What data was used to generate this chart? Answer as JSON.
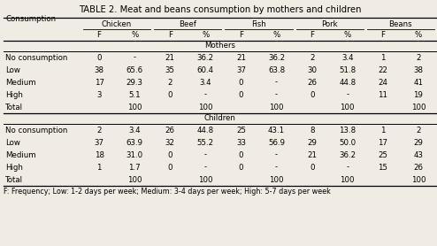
{
  "title": "TABLE 2. Meat and beans consumption by mothers and children",
  "footnote": "F: Frequency; Low: 1-2 days per week; Medium: 3-4 days per week; High: 5-7 days per week",
  "col_headers": [
    "Consumption",
    "F",
    "%",
    "F",
    "%",
    "F",
    "%",
    "F",
    "%",
    "F",
    "%"
  ],
  "food_headers": [
    "Chicken",
    "Beef",
    "Fish",
    "Pork",
    "Beans"
  ],
  "mothers_label": "Mothers",
  "children_label": "Children",
  "mothers_rows": [
    [
      "No consumption",
      "0",
      "-",
      "21",
      "36.2",
      "21",
      "36.2",
      "2",
      "3.4",
      "1",
      "2"
    ],
    [
      "Low",
      "38",
      "65.6",
      "35",
      "60.4",
      "37",
      "63.8",
      "30",
      "51.8",
      "22",
      "38"
    ],
    [
      "Medium",
      "17",
      "29.3",
      "2",
      "3.4",
      "0",
      "-",
      "26",
      "44.8",
      "24",
      "41"
    ],
    [
      "High",
      "3",
      "5.1",
      "0",
      "-",
      "0",
      "-",
      "0",
      "-",
      "11",
      "19"
    ],
    [
      "Total",
      "",
      "100",
      "",
      "100",
      "",
      "100",
      "",
      "100",
      "",
      "100"
    ]
  ],
  "children_rows": [
    [
      "No consumption",
      "2",
      "3.4",
      "26",
      "44.8",
      "25",
      "43.1",
      "8",
      "13.8",
      "1",
      "2"
    ],
    [
      "Low",
      "37",
      "63.9",
      "32",
      "55.2",
      "33",
      "56.9",
      "29",
      "50.0",
      "17",
      "29"
    ],
    [
      "Medium",
      "18",
      "31.0",
      "0",
      "-",
      "0",
      "-",
      "21",
      "36.2",
      "25",
      "43"
    ],
    [
      "High",
      "1",
      "1.7",
      "0",
      "-",
      "0",
      "-",
      "0",
      "-",
      "15",
      "26"
    ],
    [
      "Total",
      "",
      "100",
      "",
      "100",
      "",
      "100",
      "",
      "100",
      "",
      "100"
    ]
  ],
  "bg_color": "#f0ece4",
  "fontsize_title": 7.2,
  "fontsize_data": 6.2,
  "fontsize_footnote": 5.8
}
